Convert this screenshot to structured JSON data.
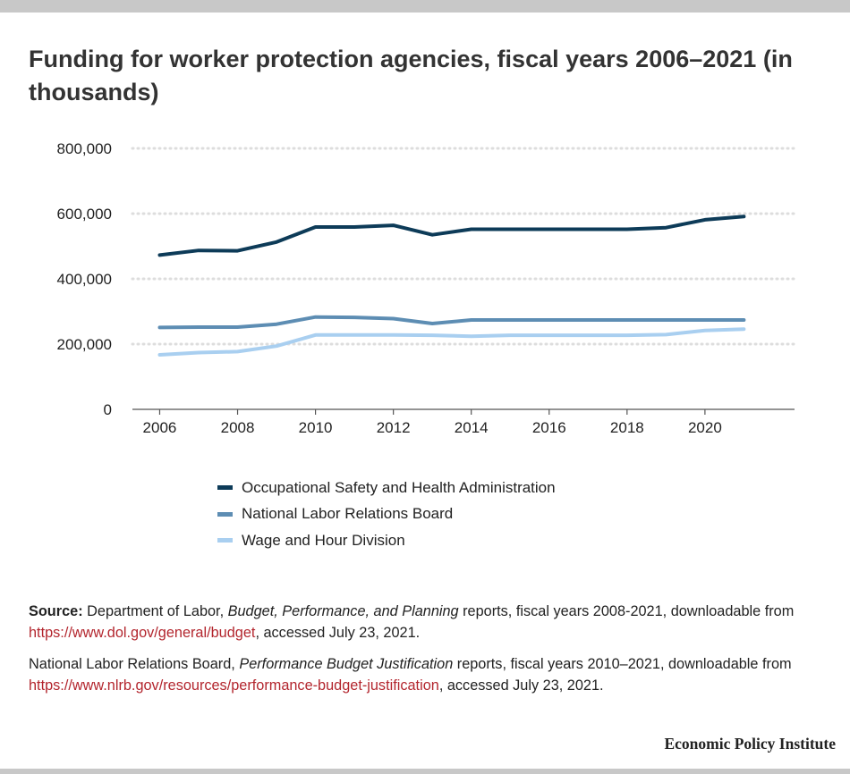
{
  "title": "Funding for worker protection agencies, fiscal years 2006–2021 (in thousands)",
  "colors": {
    "osha": "#0d3b58",
    "nlrb": "#5d8db3",
    "whd": "#a9cff0",
    "grid": "#dddddd",
    "link": "#b3262e"
  },
  "chart_data": {
    "type": "line",
    "x": [
      2006,
      2007,
      2008,
      2009,
      2010,
      2011,
      2012,
      2013,
      2014,
      2015,
      2016,
      2017,
      2018,
      2019,
      2020,
      2021
    ],
    "xticks": [
      2006,
      2008,
      2010,
      2012,
      2014,
      2016,
      2018,
      2020
    ],
    "xtick_labels": [
      "2006",
      "2008",
      "2010",
      "2012",
      "2014",
      "2016",
      "2018",
      "2020"
    ],
    "yticks": [
      0,
      200000,
      400000,
      600000,
      800000
    ],
    "ytick_labels": [
      "0",
      "200,000",
      "400,000",
      "600,000",
      "800,000"
    ],
    "xlim": [
      2005.3,
      2022.3
    ],
    "ylim": [
      0,
      800000
    ],
    "grid": "horizontal dotted",
    "legend_position": "bottom",
    "series": [
      {
        "name": "Occupational Safety and Health Administration",
        "color_key": "osha",
        "values": [
          473000,
          487000,
          486000,
          513000,
          559000,
          559000,
          564000,
          535000,
          552000,
          552000,
          552000,
          552000,
          552000,
          557000,
          581000,
          591000
        ]
      },
      {
        "name": "National Labor Relations Board",
        "color_key": "nlrb",
        "values": [
          251000,
          252000,
          252000,
          261000,
          283000,
          282000,
          278000,
          263000,
          274000,
          274000,
          274000,
          274000,
          274000,
          274000,
          274000,
          274000
        ]
      },
      {
        "name": "Wage and Hour Division",
        "color_key": "whd",
        "values": [
          167000,
          174000,
          177000,
          194000,
          228000,
          228000,
          228000,
          227000,
          224000,
          227000,
          227000,
          227000,
          227000,
          229000,
          242000,
          246000
        ]
      }
    ]
  },
  "notes": {
    "source_label": "Source:",
    "source_line1_pre": " Department of Labor, ",
    "source_line1_italic": "Budget, Performance, and Planning",
    "source_line1_post": " reports, fiscal years 2008-2021, downloadable from ",
    "source_line1_link": "https://www.dol.gov/general/budget",
    "source_line1_end": ", accessed July 23, 2021.",
    "source_line2_pre": "National Labor Relations Board, ",
    "source_line2_italic": "Performance Budget Justification",
    "source_line2_post": " reports, fiscal years 2010–2021, downloadable from ",
    "source_line2_link": "https://www.nlrb.gov/resources/performance-budget-justification",
    "source_line2_end": ", accessed July 23, 2021."
  },
  "credit": "Economic Policy Institute"
}
